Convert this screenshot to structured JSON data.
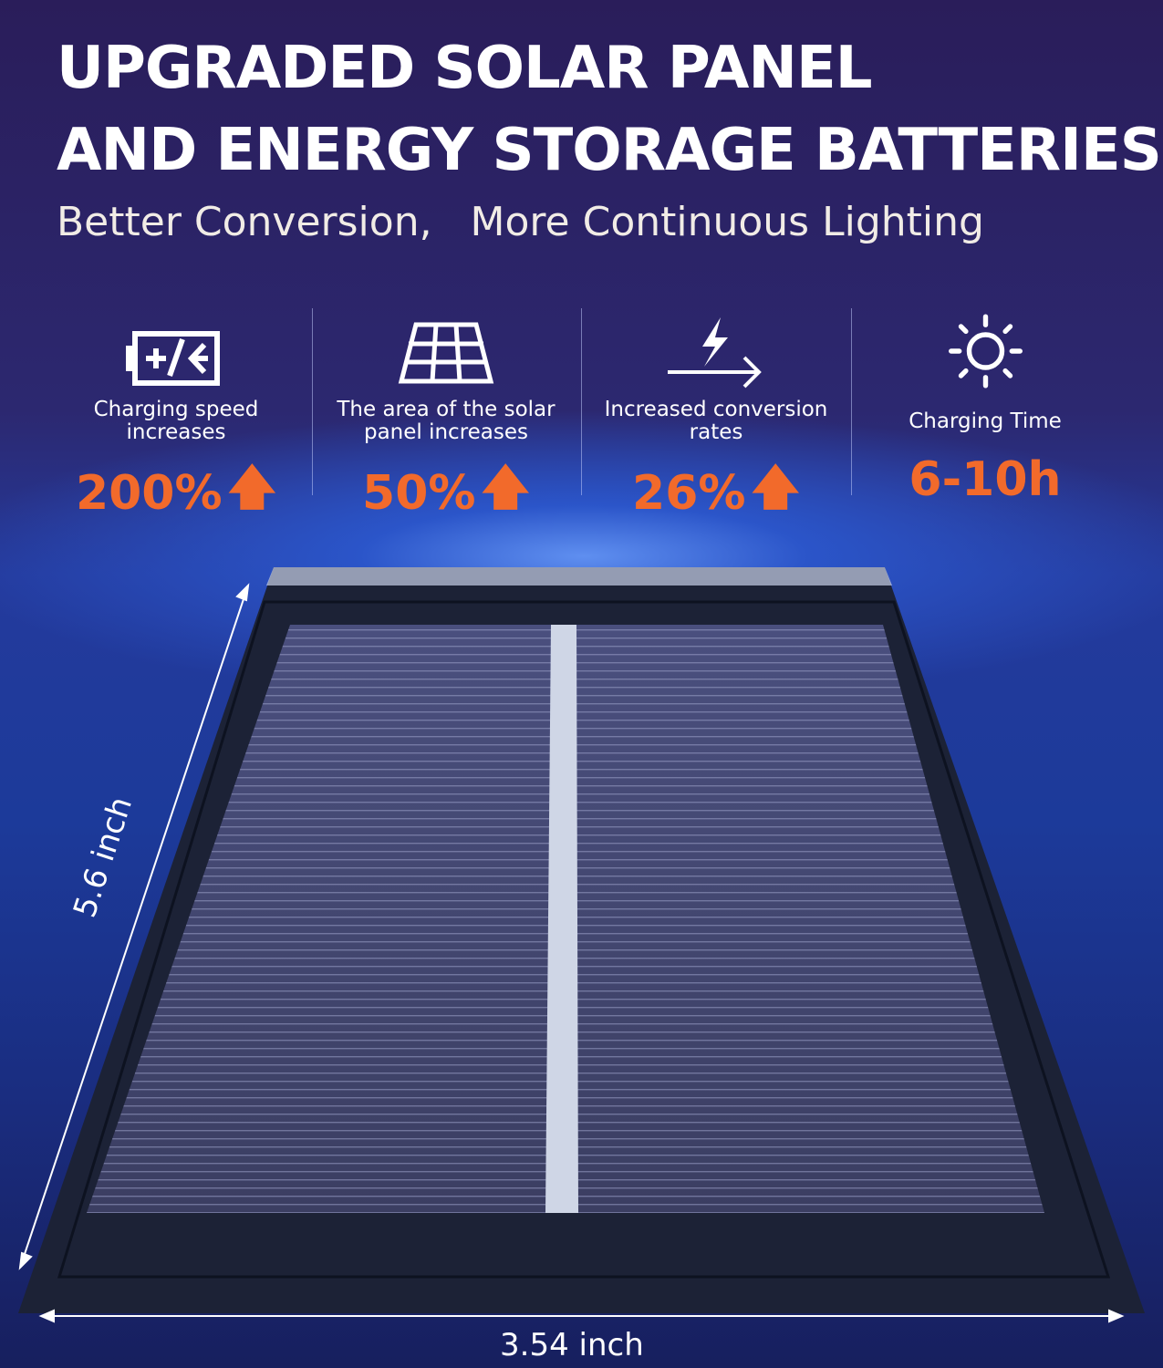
{
  "headline": {
    "line1": "UPGRADED SOLAR PANEL",
    "line2": "AND ENERGY STORAGE BATTERIES",
    "subtitle": "Better Conversion,   More Continuous Lighting"
  },
  "features": [
    {
      "icon": "battery-charging-icon",
      "label": "Charging speed increases",
      "value": "200%",
      "trend": "up"
    },
    {
      "icon": "solar-panel-icon",
      "label": "The area of the solar panel increases",
      "value": "50%",
      "trend": "up"
    },
    {
      "icon": "lightning-arrow-icon",
      "label": "Increased conversion rates",
      "value": "26%",
      "trend": "up"
    },
    {
      "icon": "sun-icon",
      "label": "Charging Time",
      "value": "6-10h"
    }
  ],
  "dimensions": {
    "height": "5.6 inch",
    "width": "3.54 inch"
  },
  "colors": {
    "accent": "#f26a2b",
    "background": "#22307a"
  }
}
